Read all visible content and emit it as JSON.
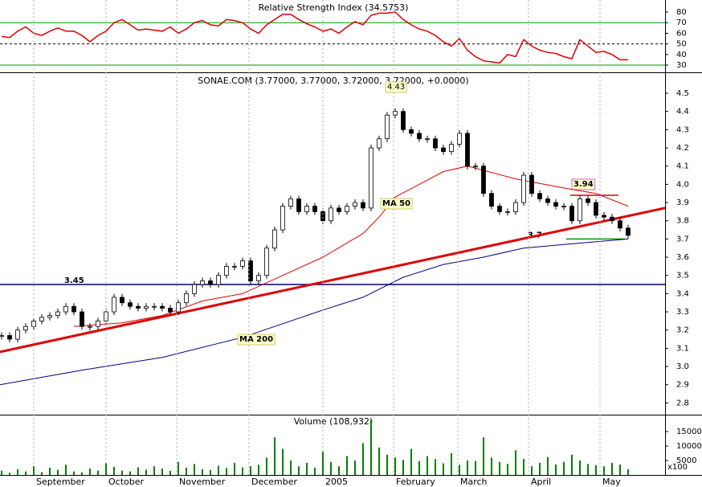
{
  "chart_data": [
    {
      "type": "line",
      "title": "Relative Strength Index (34.5753)",
      "xlim": [
        -0.2,
        82.6
      ],
      "ylim": [
        24.7,
        91.4
      ],
      "yticks": [
        30,
        40,
        50,
        60,
        70,
        80
      ],
      "color": "#e00000",
      "values": [
        57,
        56,
        62,
        66,
        60,
        58,
        62,
        65,
        62,
        62,
        58,
        52,
        58,
        62,
        70,
        73,
        68,
        63,
        64,
        63,
        62,
        66,
        60,
        64,
        70,
        72,
        68,
        67,
        73,
        72,
        70,
        64,
        60,
        68,
        73,
        78,
        78,
        73,
        69,
        66,
        62,
        64,
        60,
        66,
        71,
        68,
        77,
        79,
        79,
        80,
        73,
        68,
        64,
        62,
        58,
        52,
        48,
        55,
        44,
        38,
        34,
        33,
        32,
        40,
        38,
        54,
        48,
        44,
        42,
        41,
        38,
        36,
        54,
        48,
        42,
        43,
        40,
        35,
        35
      ],
      "hlines": [
        {
          "value": 70,
          "color": "#009900"
        },
        {
          "value": 50,
          "color": "#000000",
          "dash": true
        },
        {
          "value": 30,
          "color": "#009900"
        }
      ]
    },
    {
      "type": "candlestick",
      "title": "SONAE.COM (3.77000, 3.77000, 3.72000, 3.72000, +0.0000)",
      "xlim": [
        -0.2,
        82.6
      ],
      "ylim": [
        2.74,
        4.606
      ],
      "yticks": [
        2.8,
        2.9,
        {
          "value": 3,
          "label": "3.0"
        },
        3.1,
        3.2,
        3.3,
        3.4,
        3.5,
        3.6,
        3.7,
        3.8,
        3.9,
        {
          "value": 4,
          "label": "4.0"
        },
        4.1,
        4.2,
        4.3,
        4.4,
        4.5
      ],
      "values": [
        3.17,
        3.15,
        3.2,
        3.22,
        3.25,
        3.27,
        3.28,
        3.3,
        3.33,
        3.3,
        3.22,
        3.22,
        3.25,
        3.3,
        3.38,
        3.35,
        3.33,
        3.32,
        3.33,
        3.33,
        3.32,
        3.3,
        3.35,
        3.4,
        3.45,
        3.47,
        3.45,
        3.5,
        3.55,
        3.55,
        3.58,
        3.47,
        3.5,
        3.65,
        3.75,
        3.88,
        3.92,
        3.85,
        3.88,
        3.85,
        3.8,
        3.87,
        3.85,
        3.88,
        3.9,
        3.87,
        4.2,
        4.25,
        4.38,
        4.4,
        4.3,
        4.28,
        4.25,
        4.25,
        4.2,
        4.18,
        4.22,
        4.28,
        4.1,
        4.1,
        3.95,
        3.88,
        3.85,
        3.85,
        3.9,
        4.05,
        3.95,
        3.92,
        3.9,
        3.88,
        3.88,
        3.8,
        3.92,
        3.9,
        3.83,
        3.82,
        3.8,
        3.76,
        3.72
      ],
      "series": [
        {
          "name": "MA 50",
          "color": "#e00000",
          "label_color": "#e00000",
          "x": [
            9,
            15,
            20,
            25,
            30,
            35,
            40,
            45,
            47,
            49,
            52,
            55,
            58,
            64,
            70,
            74,
            78
          ],
          "values": [
            3.22,
            3.24,
            3.28,
            3.36,
            3.4,
            3.5,
            3.6,
            3.73,
            3.82,
            3.93,
            4.0,
            4.07,
            4.1,
            4.03,
            3.98,
            3.95,
            3.88
          ]
        },
        {
          "name": "MA 200",
          "color": "#000080",
          "label_color": "#000080",
          "x": [
            -0.2,
            10,
            20,
            30,
            40,
            45,
            50,
            55,
            60,
            65,
            70,
            78
          ],
          "values": [
            2.9,
            2.98,
            3.05,
            3.16,
            3.31,
            3.38,
            3.49,
            3.56,
            3.6,
            3.65,
            3.67,
            3.7
          ]
        }
      ],
      "trendline": {
        "color": "#e00000",
        "x": [
          -0.2,
          82.6
        ],
        "values": [
          3.08,
          3.87
        ]
      },
      "hlines": [
        {
          "value": 3.45,
          "color": "#000066",
          "label_color": "#008000",
          "label_side": "left"
        },
        {
          "value": 3.7,
          "from": 70.3,
          "to": 77.6,
          "color": "#009900",
          "label_color": "#008000",
          "label_side": "left"
        },
        {
          "value": 3.94,
          "from": 70.8,
          "to": 76.8,
          "color": "#e00000",
          "label_color": "#cc0000",
          "label_side": "above"
        }
      ],
      "annotations": [
        {
          "value": 4.43,
          "color": "#cc0000"
        }
      ]
    },
    {
      "type": "bar",
      "title": "Volume (108,932)",
      "unit_label": "x100",
      "xlim": [
        -0.2,
        82.6
      ],
      "ylim": [
        0,
        20280
      ],
      "yticks": [
        5000,
        10000,
        15000
      ],
      "color": "#008000",
      "xticks": [
        {
          "value": 4,
          "label": "September"
        },
        {
          "value": 13,
          "label": "October"
        },
        {
          "value": 21.8,
          "label": "November"
        },
        {
          "value": 30.8,
          "label": "December"
        },
        {
          "value": 40,
          "label": "2005"
        },
        {
          "value": 48.8,
          "label": "February"
        },
        {
          "value": 56.8,
          "label": "March"
        },
        {
          "value": 65.6,
          "label": "April"
        },
        {
          "value": 74.5,
          "label": "May"
        }
      ],
      "values": [
        1500,
        800,
        2000,
        1200,
        3000,
        1000,
        2500,
        1800,
        3500,
        1200,
        900,
        2200,
        1500,
        4000,
        2800,
        1500,
        1200,
        2600,
        1800,
        3000,
        2200,
        1400,
        4500,
        2500,
        3800,
        2000,
        1700,
        3200,
        2400,
        4200,
        2600,
        3000,
        3500,
        6000,
        13000,
        9000,
        5000,
        3000,
        4200,
        2500,
        8000,
        4500,
        3000,
        6500,
        5000,
        11000,
        19000,
        9500,
        7000,
        6000,
        5200,
        9000,
        4800,
        6500,
        5500,
        4000,
        7500,
        3500,
        5000,
        4800,
        13000,
        6000,
        4500,
        3800,
        8500,
        5500,
        3000,
        4200,
        6200,
        3600,
        4500,
        7000,
        5000,
        3800,
        3400,
        3000,
        4200,
        3600,
        2000
      ]
    }
  ]
}
